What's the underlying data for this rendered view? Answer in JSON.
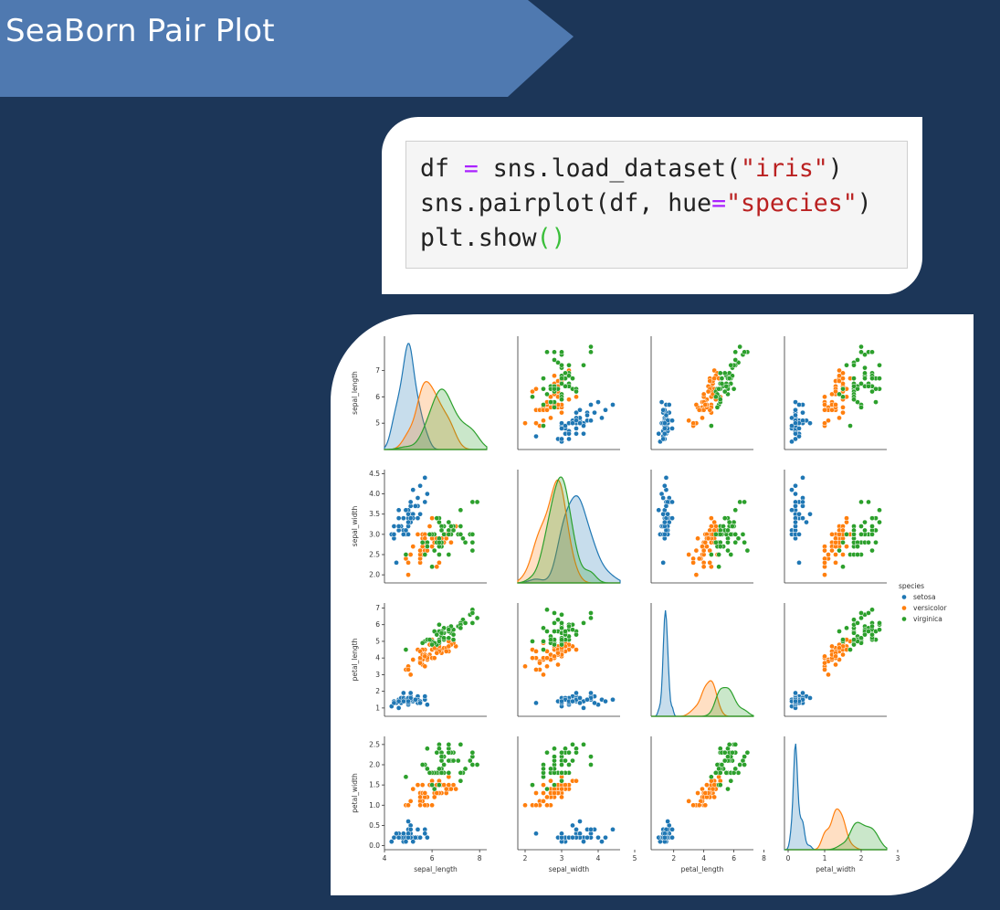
{
  "slide": {
    "title": "SeaBorn Pair Plot",
    "banner_color": "#4f79b0",
    "background_color": "#1c3658"
  },
  "code": {
    "lines": [
      [
        {
          "t": "df ",
          "c": "plain"
        },
        {
          "t": "=",
          "c": "op"
        },
        {
          "t": " sns.load_dataset(",
          "c": "plain"
        },
        {
          "t": "\"iris\"",
          "c": "str"
        },
        {
          "t": ")",
          "c": "plain"
        }
      ],
      [
        {
          "t": "sns.pairplot(df, hue",
          "c": "plain"
        },
        {
          "t": "=",
          "c": "op"
        },
        {
          "t": "\"species\"",
          "c": "str"
        },
        {
          "t": ")",
          "c": "plain"
        }
      ],
      [
        {
          "t": "plt.show",
          "c": "plain"
        },
        {
          "t": "()",
          "c": "paren"
        }
      ]
    ]
  },
  "chart_data": {
    "type": "scatter",
    "subtype": "pairplot",
    "variables": [
      "sepal_length",
      "sepal_width",
      "petal_length",
      "petal_width"
    ],
    "hue": "species",
    "legend": {
      "title": "species",
      "position": "right",
      "entries": [
        "setosa",
        "versicolor",
        "virginica"
      ]
    },
    "colors": {
      "setosa": "#1f77b4",
      "versicolor": "#ff7f0e",
      "virginica": "#2ca02c"
    },
    "axes": {
      "sepal_length": {
        "range": [
          4.0,
          8.3
        ],
        "ticks": [
          4,
          6,
          8
        ],
        "y_ticks": [
          5,
          6,
          7
        ]
      },
      "sepal_width": {
        "range": [
          1.8,
          4.6
        ],
        "ticks": [
          2,
          3,
          4,
          5
        ],
        "y_ticks": [
          2.0,
          2.5,
          3.0,
          3.5,
          4.0,
          4.5
        ]
      },
      "petal_length": {
        "range": [
          0.5,
          7.3
        ],
        "ticks": [
          2,
          4,
          6,
          8
        ],
        "y_ticks": [
          1,
          2,
          3,
          4,
          5,
          6,
          7
        ]
      },
      "petal_width": {
        "range": [
          -0.1,
          2.7
        ],
        "ticks": [
          0,
          1,
          2,
          3
        ],
        "y_ticks": [
          0.0,
          0.5,
          1.0,
          1.5,
          2.0,
          2.5
        ]
      }
    },
    "density_peaks": {
      "sepal_length": {
        "setosa": 5.0,
        "versicolor": 5.9,
        "virginica": 6.5
      },
      "sepal_width": {
        "setosa": 3.4,
        "versicolor": 2.8,
        "virginica": 3.0
      },
      "petal_length": {
        "setosa": 1.5,
        "versicolor": 4.3,
        "virginica": 5.5
      },
      "petal_width": {
        "setosa": 0.2,
        "versicolor": 1.3,
        "virginica": 2.0
      }
    },
    "series": [
      {
        "name": "setosa",
        "points": [
          [
            5.1,
            3.5,
            1.4,
            0.2
          ],
          [
            4.9,
            3.0,
            1.4,
            0.2
          ],
          [
            4.7,
            3.2,
            1.3,
            0.2
          ],
          [
            4.6,
            3.1,
            1.5,
            0.2
          ],
          [
            5.0,
            3.6,
            1.4,
            0.2
          ],
          [
            5.4,
            3.9,
            1.7,
            0.4
          ],
          [
            4.6,
            3.4,
            1.4,
            0.3
          ],
          [
            5.0,
            3.4,
            1.5,
            0.2
          ],
          [
            4.4,
            2.9,
            1.4,
            0.2
          ],
          [
            4.9,
            3.1,
            1.5,
            0.1
          ],
          [
            5.4,
            3.7,
            1.5,
            0.2
          ],
          [
            4.8,
            3.4,
            1.6,
            0.2
          ],
          [
            4.8,
            3.0,
            1.4,
            0.1
          ],
          [
            4.3,
            3.0,
            1.1,
            0.1
          ],
          [
            5.8,
            4.0,
            1.2,
            0.2
          ],
          [
            5.7,
            4.4,
            1.5,
            0.4
          ],
          [
            5.4,
            3.9,
            1.3,
            0.4
          ],
          [
            5.1,
            3.5,
            1.4,
            0.3
          ],
          [
            5.7,
            3.8,
            1.7,
            0.3
          ],
          [
            5.1,
            3.8,
            1.5,
            0.3
          ],
          [
            5.4,
            3.4,
            1.7,
            0.2
          ],
          [
            5.1,
            3.7,
            1.5,
            0.4
          ],
          [
            4.6,
            3.6,
            1.0,
            0.2
          ],
          [
            5.1,
            3.3,
            1.7,
            0.5
          ],
          [
            4.8,
            3.4,
            1.9,
            0.2
          ],
          [
            5.0,
            3.0,
            1.6,
            0.2
          ],
          [
            5.0,
            3.4,
            1.6,
            0.4
          ],
          [
            5.2,
            3.5,
            1.5,
            0.2
          ],
          [
            5.2,
            3.4,
            1.4,
            0.2
          ],
          [
            4.7,
            3.2,
            1.6,
            0.2
          ],
          [
            4.8,
            3.1,
            1.6,
            0.2
          ],
          [
            5.4,
            3.4,
            1.5,
            0.4
          ],
          [
            5.2,
            4.1,
            1.5,
            0.1
          ],
          [
            5.5,
            4.2,
            1.4,
            0.2
          ],
          [
            4.9,
            3.1,
            1.5,
            0.2
          ],
          [
            5.0,
            3.2,
            1.2,
            0.2
          ],
          [
            5.5,
            3.5,
            1.3,
            0.2
          ],
          [
            4.9,
            3.6,
            1.4,
            0.1
          ],
          [
            4.4,
            3.0,
            1.3,
            0.2
          ],
          [
            5.1,
            3.4,
            1.5,
            0.2
          ],
          [
            5.0,
            3.5,
            1.3,
            0.3
          ],
          [
            4.5,
            2.3,
            1.3,
            0.3
          ],
          [
            4.4,
            3.2,
            1.3,
            0.2
          ],
          [
            5.0,
            3.5,
            1.6,
            0.6
          ],
          [
            5.1,
            3.8,
            1.9,
            0.4
          ],
          [
            4.8,
            3.0,
            1.4,
            0.3
          ],
          [
            5.1,
            3.8,
            1.6,
            0.2
          ],
          [
            4.6,
            3.2,
            1.4,
            0.2
          ],
          [
            5.3,
            3.7,
            1.5,
            0.2
          ],
          [
            5.0,
            3.3,
            1.4,
            0.2
          ]
        ]
      },
      {
        "name": "versicolor",
        "points": [
          [
            7.0,
            3.2,
            4.7,
            1.4
          ],
          [
            6.4,
            3.2,
            4.5,
            1.5
          ],
          [
            6.9,
            3.1,
            4.9,
            1.5
          ],
          [
            5.5,
            2.3,
            4.0,
            1.3
          ],
          [
            6.5,
            2.8,
            4.6,
            1.5
          ],
          [
            5.7,
            2.8,
            4.5,
            1.3
          ],
          [
            6.3,
            3.3,
            4.7,
            1.6
          ],
          [
            4.9,
            2.4,
            3.3,
            1.0
          ],
          [
            6.6,
            2.9,
            4.6,
            1.3
          ],
          [
            5.2,
            2.7,
            3.9,
            1.4
          ],
          [
            5.0,
            2.0,
            3.5,
            1.0
          ],
          [
            5.9,
            3.0,
            4.2,
            1.5
          ],
          [
            6.0,
            2.2,
            4.0,
            1.0
          ],
          [
            6.1,
            2.9,
            4.7,
            1.4
          ],
          [
            5.6,
            2.9,
            3.6,
            1.3
          ],
          [
            6.7,
            3.1,
            4.4,
            1.4
          ],
          [
            5.6,
            3.0,
            4.5,
            1.5
          ],
          [
            5.8,
            2.7,
            4.1,
            1.0
          ],
          [
            6.2,
            2.2,
            4.5,
            1.5
          ],
          [
            5.6,
            2.5,
            3.9,
            1.1
          ],
          [
            5.9,
            3.2,
            4.8,
            1.8
          ],
          [
            6.1,
            2.8,
            4.0,
            1.3
          ],
          [
            6.3,
            2.5,
            4.9,
            1.5
          ],
          [
            6.1,
            2.8,
            4.7,
            1.2
          ],
          [
            6.4,
            2.9,
            4.3,
            1.3
          ],
          [
            6.6,
            3.0,
            4.4,
            1.4
          ],
          [
            6.8,
            2.8,
            4.8,
            1.4
          ],
          [
            6.7,
            3.0,
            5.0,
            1.7
          ],
          [
            6.0,
            2.9,
            4.5,
            1.5
          ],
          [
            5.7,
            2.6,
            3.5,
            1.0
          ],
          [
            5.5,
            2.4,
            3.8,
            1.1
          ],
          [
            5.5,
            2.4,
            3.7,
            1.0
          ],
          [
            5.8,
            2.7,
            3.9,
            1.2
          ],
          [
            6.0,
            2.7,
            5.1,
            1.6
          ],
          [
            5.4,
            3.0,
            4.5,
            1.5
          ],
          [
            6.0,
            3.4,
            4.5,
            1.6
          ],
          [
            6.7,
            3.1,
            4.7,
            1.5
          ],
          [
            6.3,
            2.3,
            4.4,
            1.3
          ],
          [
            5.6,
            3.0,
            4.1,
            1.3
          ],
          [
            5.5,
            2.5,
            4.0,
            1.3
          ],
          [
            5.5,
            2.6,
            4.4,
            1.2
          ],
          [
            6.1,
            3.0,
            4.6,
            1.4
          ],
          [
            5.8,
            2.6,
            4.0,
            1.2
          ],
          [
            5.0,
            2.3,
            3.3,
            1.0
          ],
          [
            5.6,
            2.7,
            4.2,
            1.3
          ],
          [
            5.7,
            3.0,
            4.2,
            1.2
          ],
          [
            5.7,
            2.9,
            4.2,
            1.3
          ],
          [
            6.2,
            2.9,
            4.3,
            1.3
          ],
          [
            5.1,
            2.5,
            3.0,
            1.1
          ],
          [
            5.7,
            2.8,
            4.1,
            1.3
          ]
        ]
      },
      {
        "name": "virginica",
        "points": [
          [
            6.3,
            3.3,
            6.0,
            2.5
          ],
          [
            5.8,
            2.7,
            5.1,
            1.9
          ],
          [
            7.1,
            3.0,
            5.9,
            2.1
          ],
          [
            6.3,
            2.9,
            5.6,
            1.8
          ],
          [
            6.5,
            3.0,
            5.8,
            2.2
          ],
          [
            7.6,
            3.0,
            6.6,
            2.1
          ],
          [
            4.9,
            2.5,
            4.5,
            1.7
          ],
          [
            7.3,
            2.9,
            6.3,
            1.8
          ],
          [
            6.7,
            2.5,
            5.8,
            1.8
          ],
          [
            7.2,
            3.6,
            6.1,
            2.5
          ],
          [
            6.5,
            3.2,
            5.1,
            2.0
          ],
          [
            6.4,
            2.7,
            5.3,
            1.9
          ],
          [
            6.8,
            3.0,
            5.5,
            2.1
          ],
          [
            5.7,
            2.5,
            5.0,
            2.0
          ],
          [
            5.8,
            2.8,
            5.1,
            2.4
          ],
          [
            6.4,
            3.2,
            5.3,
            2.3
          ],
          [
            6.5,
            3.0,
            5.5,
            1.8
          ],
          [
            7.7,
            3.8,
            6.7,
            2.2
          ],
          [
            7.7,
            2.6,
            6.9,
            2.3
          ],
          [
            6.0,
            2.2,
            5.0,
            1.5
          ],
          [
            6.9,
            3.2,
            5.7,
            2.3
          ],
          [
            5.6,
            2.8,
            4.9,
            2.0
          ],
          [
            7.7,
            2.8,
            6.7,
            2.0
          ],
          [
            6.3,
            2.7,
            4.9,
            1.8
          ],
          [
            6.7,
            3.3,
            5.7,
            2.1
          ],
          [
            7.2,
            3.2,
            6.0,
            1.8
          ],
          [
            6.2,
            2.8,
            4.8,
            1.8
          ],
          [
            6.1,
            3.0,
            4.9,
            1.8
          ],
          [
            6.4,
            2.8,
            5.6,
            2.1
          ],
          [
            7.2,
            3.0,
            5.8,
            1.6
          ],
          [
            7.4,
            2.8,
            6.1,
            1.9
          ],
          [
            7.9,
            3.8,
            6.4,
            2.0
          ],
          [
            6.4,
            2.8,
            5.6,
            2.2
          ],
          [
            6.3,
            2.8,
            5.1,
            1.5
          ],
          [
            6.1,
            2.6,
            5.6,
            1.4
          ],
          [
            7.7,
            3.0,
            6.1,
            2.3
          ],
          [
            6.3,
            3.4,
            5.6,
            2.4
          ],
          [
            6.4,
            3.1,
            5.5,
            1.8
          ],
          [
            6.0,
            3.0,
            4.8,
            1.8
          ],
          [
            6.9,
            3.1,
            5.4,
            2.1
          ],
          [
            6.7,
            3.1,
            5.6,
            2.4
          ],
          [
            6.9,
            3.1,
            5.1,
            2.3
          ],
          [
            5.8,
            2.7,
            5.1,
            1.9
          ],
          [
            6.8,
            3.2,
            5.9,
            2.3
          ],
          [
            6.7,
            3.3,
            5.7,
            2.5
          ],
          [
            6.7,
            3.0,
            5.2,
            2.3
          ],
          [
            6.3,
            2.5,
            5.0,
            1.9
          ],
          [
            6.5,
            3.0,
            5.2,
            2.0
          ],
          [
            6.2,
            3.4,
            5.4,
            2.3
          ],
          [
            5.9,
            3.0,
            5.1,
            1.8
          ]
        ]
      }
    ]
  }
}
